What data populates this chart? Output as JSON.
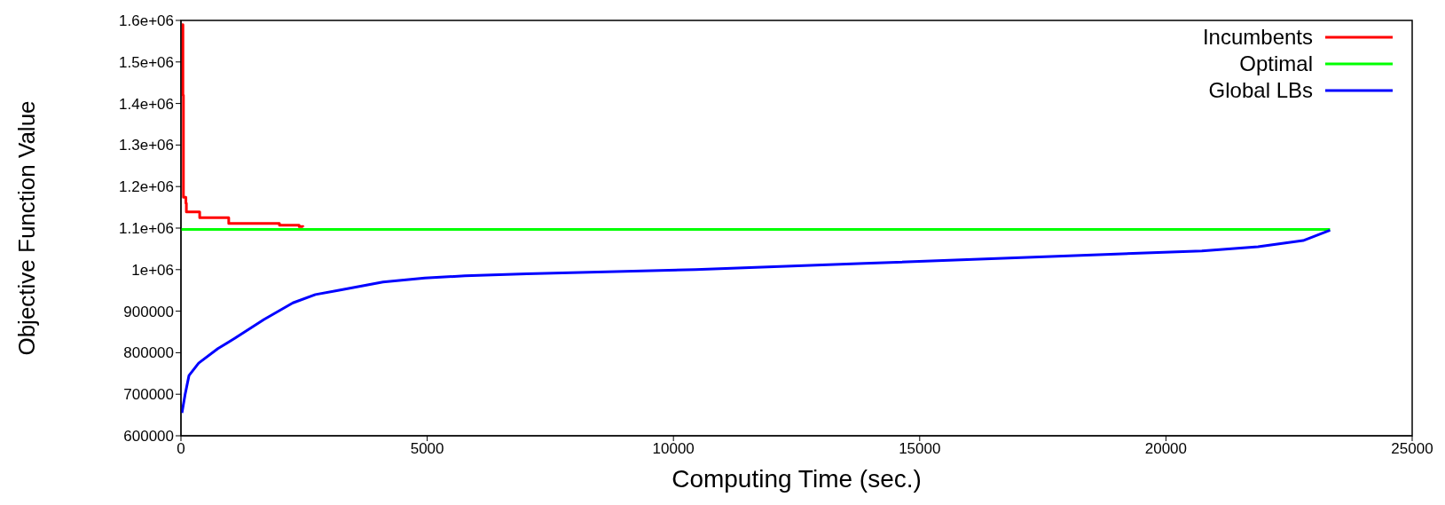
{
  "chart_data": {
    "type": "line",
    "xlabel": "Computing Time (sec.)",
    "ylabel": "Objective Function Value",
    "xlim": [
      0,
      25000
    ],
    "xticks": [
      0,
      5000,
      10000,
      15000,
      20000,
      25000
    ],
    "ylim": [
      600000,
      1600000
    ],
    "yticks": [
      {
        "value": 600000,
        "label": "600000"
      },
      {
        "value": 700000,
        "label": "700000"
      },
      {
        "value": 800000,
        "label": "800000"
      },
      {
        "value": 900000,
        "label": "900000"
      },
      {
        "value": 1000000,
        "label": "1e+06"
      },
      {
        "value": 1100000,
        "label": "1.1e+06"
      },
      {
        "value": 1200000,
        "label": "1.2e+06"
      },
      {
        "value": 1300000,
        "label": "1.3e+06"
      },
      {
        "value": 1400000,
        "label": "1.4e+06"
      },
      {
        "value": 1500000,
        "label": "1.5e+06"
      },
      {
        "value": 1600000,
        "label": "1.6e+06"
      }
    ],
    "legend": "top right",
    "marker": "none",
    "line_style": "solid",
    "series": [
      {
        "name": "Incumbents",
        "color": "#ff0000",
        "type": "step",
        "x": [
          20,
          40,
          50,
          100,
          110,
          380,
          970,
          2000,
          2400,
          2480
        ],
        "values": [
          1590000,
          1420000,
          1174000,
          1160000,
          1139000,
          1125000,
          1111000,
          1107000,
          1104000,
          1103000
        ]
      },
      {
        "name": "Optimal",
        "color": "#00ff00",
        "x": [
          0,
          23333
        ],
        "values": [
          1097000,
          1097000
        ]
      },
      {
        "name": "Global LBs",
        "color": "#0000ff",
        "x": [
          20,
          85,
          163,
          359,
          750,
          1097,
          1685,
          2273,
          2730,
          3188,
          4102,
          4951,
          5767,
          7023,
          10449,
          13876,
          17303,
          20729,
          21871,
          22785,
          23333
        ],
        "values": [
          655000,
          700000,
          745000,
          775000,
          810000,
          835000,
          880000,
          920000,
          940000,
          950000,
          970000,
          980000,
          985000,
          990000,
          1000000,
          1015000,
          1030000,
          1045000,
          1055000,
          1070000,
          1095000
        ]
      }
    ]
  }
}
